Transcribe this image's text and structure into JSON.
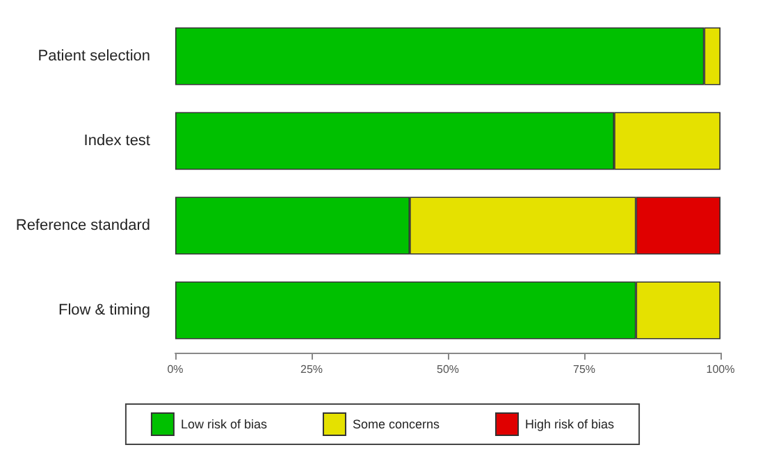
{
  "chart_data": {
    "type": "bar",
    "orientation": "horizontal",
    "stacked": true,
    "categories": [
      "Patient selection",
      "Index test",
      "Reference standard",
      "Flow & timing"
    ],
    "series": [
      {
        "name": "Low risk of bias",
        "color": "#00c000",
        "values": [
          97,
          80.5,
          43,
          84.5
        ]
      },
      {
        "name": "Some concerns",
        "color": "#e5e100",
        "values": [
          3,
          19.5,
          41.5,
          15.5
        ]
      },
      {
        "name": "High risk of bias",
        "color": "#e00000",
        "values": [
          null,
          null,
          15.5,
          null
        ]
      }
    ],
    "xlim": [
      0,
      100
    ],
    "xticks": [
      {
        "value": 0,
        "label": "0%"
      },
      {
        "value": 25,
        "label": "25%"
      },
      {
        "value": 50,
        "label": "50%"
      },
      {
        "value": 75,
        "label": "75%"
      },
      {
        "value": 100,
        "label": "100%"
      }
    ],
    "grid": false,
    "legend": "bottom"
  }
}
